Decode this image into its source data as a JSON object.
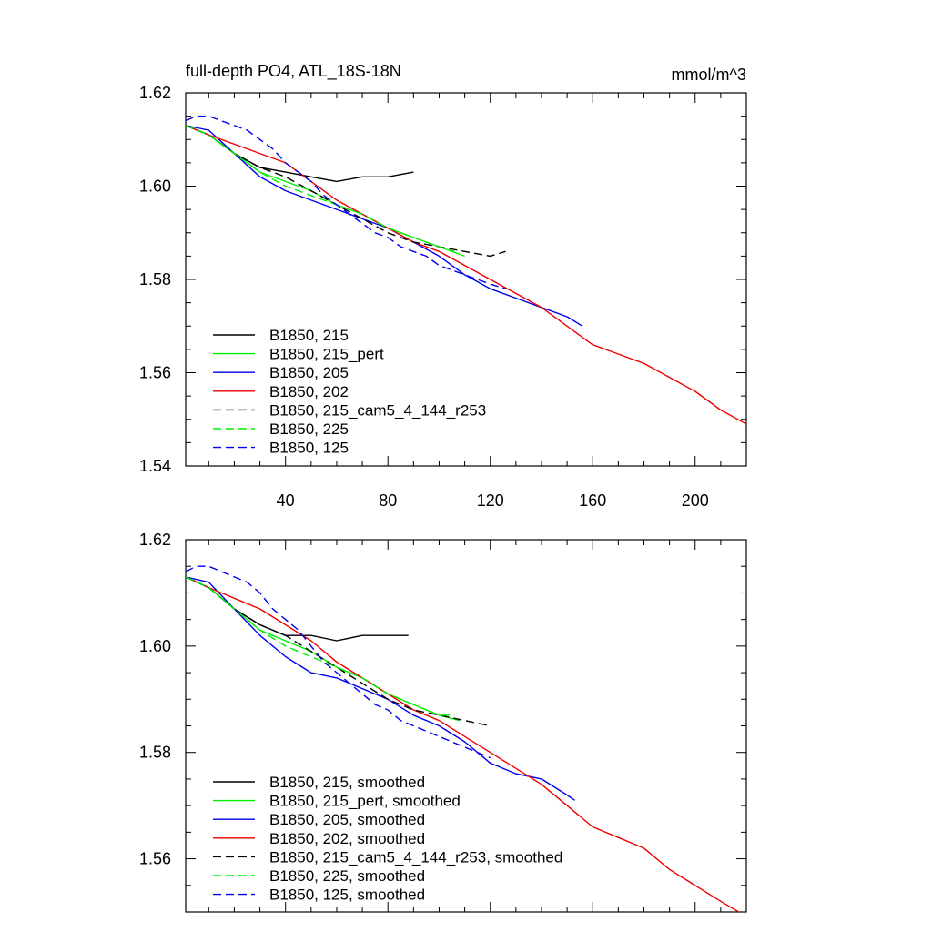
{
  "chart_data": [
    {
      "type": "line",
      "title": "full-depth PO4, ATL_18S-18N",
      "units": "mmol/m^3",
      "xlim": [
        1,
        220
      ],
      "ylim": [
        1.54,
        1.62
      ],
      "xticks": [
        40,
        80,
        120,
        160,
        200
      ],
      "yticks": [
        1.54,
        1.56,
        1.58,
        1.6,
        1.62
      ],
      "xtick_labels": [
        "40",
        "80",
        "120",
        "160",
        "200"
      ],
      "ytick_labels": [
        "1.54",
        "1.56",
        "1.58",
        "1.60",
        "1.62"
      ],
      "legend_position": "bottom-left",
      "series": [
        {
          "name": "B1850, 215",
          "color": "#000000",
          "dash": "solid",
          "x": [
            1,
            10,
            20,
            30,
            40,
            50,
            60,
            70,
            80,
            90
          ],
          "y": [
            1.613,
            1.611,
            1.607,
            1.604,
            1.603,
            1.602,
            1.601,
            1.602,
            1.602,
            1.603
          ]
        },
        {
          "name": "B1850, 215_pert",
          "color": "#00ee00",
          "dash": "solid",
          "x": [
            1,
            10,
            20,
            30,
            40,
            50,
            60,
            70,
            80,
            90,
            100,
            110
          ],
          "y": [
            1.613,
            1.611,
            1.607,
            1.603,
            1.601,
            1.599,
            1.596,
            1.594,
            1.591,
            1.589,
            1.587,
            1.585
          ]
        },
        {
          "name": "B1850, 205",
          "color": "#0000ee",
          "dash": "solid",
          "x": [
            1,
            10,
            20,
            30,
            40,
            50,
            60,
            70,
            80,
            90,
            100,
            110,
            120,
            130,
            140,
            150,
            156
          ],
          "y": [
            1.613,
            1.612,
            1.607,
            1.602,
            1.599,
            1.597,
            1.595,
            1.593,
            1.591,
            1.588,
            1.585,
            1.581,
            1.578,
            1.576,
            1.574,
            1.572,
            1.57
          ]
        },
        {
          "name": "B1850, 202",
          "color": "#ee0000",
          "dash": "solid",
          "x": [
            1,
            10,
            20,
            30,
            40,
            50,
            60,
            70,
            80,
            90,
            100,
            110,
            120,
            130,
            140,
            150,
            160,
            170,
            180,
            190,
            200,
            210,
            220
          ],
          "y": [
            1.613,
            1.611,
            1.609,
            1.607,
            1.605,
            1.601,
            1.597,
            1.594,
            1.591,
            1.588,
            1.586,
            1.583,
            1.58,
            1.577,
            1.574,
            1.57,
            1.566,
            1.564,
            1.562,
            1.559,
            1.556,
            1.552,
            1.549
          ]
        },
        {
          "name": "B1850, 215_cam5_4_144_r253",
          "color": "#000000",
          "dash": "dashed",
          "x": [
            1,
            10,
            20,
            30,
            40,
            50,
            60,
            70,
            80,
            90,
            100,
            110,
            120,
            126
          ],
          "y": [
            1.613,
            1.611,
            1.607,
            1.604,
            1.602,
            1.599,
            1.596,
            1.593,
            1.59,
            1.588,
            1.587,
            1.586,
            1.585,
            1.586
          ]
        },
        {
          "name": "B1850, 225",
          "color": "#00ee00",
          "dash": "dashed",
          "x": [
            1,
            10,
            20,
            30,
            40,
            50,
            60,
            70,
            80,
            90,
            100,
            106
          ],
          "y": [
            1.613,
            1.611,
            1.607,
            1.603,
            1.6,
            1.598,
            1.596,
            1.594,
            1.591,
            1.589,
            1.587,
            1.586
          ]
        },
        {
          "name": "B1850, 125",
          "color": "#0000ee",
          "dash": "dashed",
          "x": [
            1,
            5,
            10,
            15,
            20,
            25,
            30,
            35,
            40,
            45,
            50,
            55,
            60,
            65,
            70,
            75,
            80,
            85,
            90,
            95,
            100,
            110,
            120,
            126
          ],
          "y": [
            1.614,
            1.615,
            1.615,
            1.614,
            1.613,
            1.612,
            1.61,
            1.608,
            1.605,
            1.603,
            1.601,
            1.598,
            1.596,
            1.594,
            1.592,
            1.59,
            1.589,
            1.587,
            1.586,
            1.585,
            1.583,
            1.581,
            1.579,
            1.578
          ]
        }
      ]
    },
    {
      "type": "line",
      "xlim": [
        1,
        220
      ],
      "ylim": [
        1.55,
        1.62
      ],
      "xticks": [
        40,
        80,
        120,
        160,
        200
      ],
      "yticks": [
        1.56,
        1.58,
        1.6,
        1.62
      ],
      "ytick_labels": [
        "1.56",
        "1.58",
        "1.60",
        "1.62"
      ],
      "legend_position": "bottom-left",
      "series": [
        {
          "name": "B1850, 215, smoothed",
          "color": "#000000",
          "dash": "solid",
          "x": [
            1,
            10,
            20,
            30,
            40,
            50,
            60,
            70,
            80,
            88
          ],
          "y": [
            1.613,
            1.611,
            1.607,
            1.604,
            1.602,
            1.602,
            1.601,
            1.602,
            1.602,
            1.602
          ]
        },
        {
          "name": "B1850, 215_pert, smoothed",
          "color": "#00ee00",
          "dash": "solid",
          "x": [
            1,
            10,
            20,
            30,
            40,
            50,
            60,
            70,
            80,
            90,
            100,
            108
          ],
          "y": [
            1.613,
            1.611,
            1.607,
            1.603,
            1.601,
            1.599,
            1.596,
            1.594,
            1.591,
            1.589,
            1.587,
            1.586
          ]
        },
        {
          "name": "B1850, 205, smoothed",
          "color": "#0000ee",
          "dash": "solid",
          "x": [
            1,
            10,
            20,
            30,
            40,
            50,
            60,
            70,
            80,
            90,
            100,
            110,
            120,
            130,
            140,
            150,
            153
          ],
          "y": [
            1.613,
            1.612,
            1.607,
            1.602,
            1.598,
            1.595,
            1.594,
            1.592,
            1.59,
            1.587,
            1.585,
            1.582,
            1.578,
            1.576,
            1.575,
            1.572,
            1.571
          ]
        },
        {
          "name": "B1850, 202, smoothed",
          "color": "#ee0000",
          "dash": "solid",
          "x": [
            1,
            10,
            20,
            30,
            40,
            50,
            60,
            70,
            80,
            90,
            100,
            110,
            120,
            130,
            140,
            150,
            160,
            170,
            180,
            190,
            200,
            210,
            217
          ],
          "y": [
            1.613,
            1.611,
            1.609,
            1.607,
            1.604,
            1.601,
            1.597,
            1.594,
            1.591,
            1.588,
            1.586,
            1.583,
            1.58,
            1.577,
            1.574,
            1.57,
            1.566,
            1.564,
            1.562,
            1.558,
            1.555,
            1.552,
            1.55
          ]
        },
        {
          "name": "B1850, 215_cam5_4_144_r253, smoothed",
          "color": "#000000",
          "dash": "dashed",
          "x": [
            1,
            10,
            20,
            30,
            40,
            50,
            60,
            70,
            80,
            90,
            100,
            110,
            120
          ],
          "y": [
            1.613,
            1.611,
            1.607,
            1.604,
            1.602,
            1.599,
            1.596,
            1.593,
            1.59,
            1.588,
            1.587,
            1.586,
            1.585
          ]
        },
        {
          "name": "B1850, 225, smoothed",
          "color": "#00ee00",
          "dash": "dashed",
          "x": [
            1,
            10,
            20,
            30,
            40,
            50,
            60,
            70,
            80,
            90,
            100,
            106
          ],
          "y": [
            1.613,
            1.611,
            1.607,
            1.603,
            1.6,
            1.598,
            1.596,
            1.594,
            1.591,
            1.589,
            1.587,
            1.587
          ]
        },
        {
          "name": "B1850, 125, smoothed",
          "color": "#0000ee",
          "dash": "dashed",
          "x": [
            1,
            5,
            10,
            15,
            20,
            25,
            30,
            35,
            40,
            45,
            50,
            55,
            60,
            65,
            70,
            75,
            80,
            85,
            90,
            95,
            100,
            110,
            120
          ],
          "y": [
            1.614,
            1.615,
            1.615,
            1.614,
            1.613,
            1.612,
            1.61,
            1.607,
            1.605,
            1.603,
            1.6,
            1.597,
            1.595,
            1.593,
            1.591,
            1.589,
            1.588,
            1.586,
            1.585,
            1.584,
            1.583,
            1.581,
            1.579
          ]
        }
      ]
    }
  ]
}
